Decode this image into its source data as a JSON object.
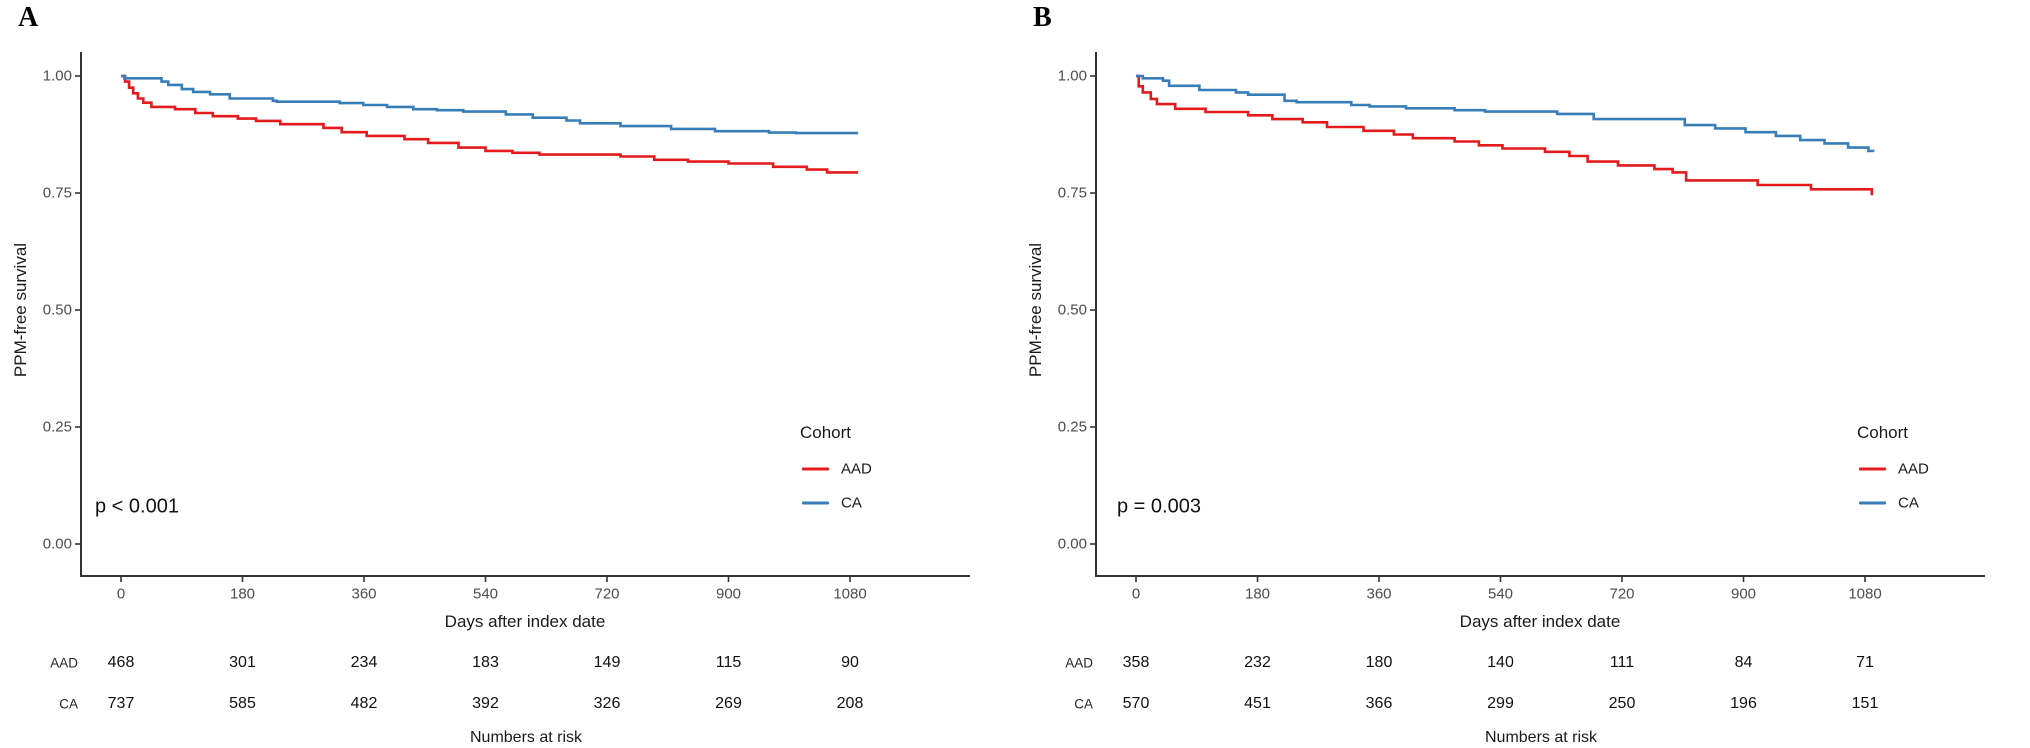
{
  "chart_data": [
    {
      "type": "line",
      "subtype": "kaplan-meier-step",
      "panel_label": "A",
      "xlabel": "Days after index date",
      "ylabel": "PPM-free survival",
      "annotation": "p < 0.001",
      "legend_title": "Cohort",
      "legend_position": "right-center",
      "xlim": [
        0,
        1080
      ],
      "ylim": [
        0.0,
        1.0
      ],
      "x_ticks": [
        0,
        180,
        360,
        540,
        720,
        900,
        1080
      ],
      "y_ticks": [
        "1.00",
        "0.75",
        "0.50",
        "0.25",
        "0.00"
      ],
      "grid": false,
      "series": [
        {
          "name": "AAD",
          "color": "#e41a1c",
          "points": [
            [
              0,
              1.0
            ],
            [
              6,
              0.988
            ],
            [
              12,
              0.975
            ],
            [
              18,
              0.963
            ],
            [
              25,
              0.952
            ],
            [
              33,
              0.943
            ],
            [
              45,
              0.934
            ],
            [
              80,
              0.929
            ],
            [
              110,
              0.921
            ],
            [
              136,
              0.914
            ],
            [
              173,
              0.909
            ],
            [
              200,
              0.904
            ],
            [
              236,
              0.897
            ],
            [
              300,
              0.889
            ],
            [
              327,
              0.88
            ],
            [
              364,
              0.872
            ],
            [
              420,
              0.865
            ],
            [
              455,
              0.857
            ],
            [
              500,
              0.847
            ],
            [
              540,
              0.84
            ],
            [
              580,
              0.836
            ],
            [
              620,
              0.832
            ],
            [
              740,
              0.828
            ],
            [
              790,
              0.821
            ],
            [
              840,
              0.817
            ],
            [
              900,
              0.813
            ],
            [
              966,
              0.806
            ],
            [
              1016,
              0.8
            ],
            [
              1046,
              0.794
            ],
            [
              1092,
              0.794
            ]
          ]
        },
        {
          "name": "CA",
          "color": "#377eb8",
          "points": [
            [
              0,
              1.0
            ],
            [
              5,
              0.995
            ],
            [
              60,
              0.988
            ],
            [
              70,
              0.981
            ],
            [
              90,
              0.972
            ],
            [
              107,
              0.966
            ],
            [
              132,
              0.961
            ],
            [
              161,
              0.952
            ],
            [
              225,
              0.947
            ],
            [
              231,
              0.945
            ],
            [
              324,
              0.942
            ],
            [
              359,
              0.938
            ],
            [
              394,
              0.934
            ],
            [
              433,
              0.929
            ],
            [
              468,
              0.927
            ],
            [
              507,
              0.924
            ],
            [
              570,
              0.918
            ],
            [
              610,
              0.911
            ],
            [
              660,
              0.905
            ],
            [
              680,
              0.899
            ],
            [
              740,
              0.893
            ],
            [
              815,
              0.887
            ],
            [
              880,
              0.882
            ],
            [
              960,
              0.879
            ],
            [
              1000,
              0.878
            ],
            [
              1092,
              0.878
            ]
          ]
        }
      ],
      "risk_table": {
        "caption": "Numbers at risk",
        "time_points": [
          0,
          180,
          360,
          540,
          720,
          900,
          1080
        ],
        "rows": [
          {
            "label": "AAD",
            "values": [
              "468",
              "301",
              "234",
              "183",
              "149",
              "115",
              "90"
            ]
          },
          {
            "label": "CA",
            "values": [
              "737",
              "585",
              "482",
              "392",
              "326",
              "269",
              "208"
            ]
          }
        ]
      }
    },
    {
      "type": "line",
      "subtype": "kaplan-meier-step",
      "panel_label": "B",
      "xlabel": "Days after index date",
      "ylabel": "PPM-free survival",
      "annotation": "p = 0.003",
      "legend_title": "Cohort",
      "legend_position": "right-center",
      "xlim": [
        0,
        1080
      ],
      "ylim": [
        0.0,
        1.0
      ],
      "x_ticks": [
        0,
        180,
        360,
        540,
        720,
        900,
        1080
      ],
      "y_ticks": [
        "1.00",
        "0.75",
        "0.50",
        "0.25",
        "0.00"
      ],
      "grid": false,
      "series": [
        {
          "name": "AAD",
          "color": "#e41a1c",
          "points": [
            [
              0,
              1.0
            ],
            [
              4,
              0.978
            ],
            [
              10,
              0.965
            ],
            [
              22,
              0.951
            ],
            [
              31,
              0.94
            ],
            [
              58,
              0.93
            ],
            [
              103,
              0.923
            ],
            [
              166,
              0.916
            ],
            [
              202,
              0.908
            ],
            [
              247,
              0.901
            ],
            [
              283,
              0.891
            ],
            [
              337,
              0.883
            ],
            [
              382,
              0.875
            ],
            [
              410,
              0.867
            ],
            [
              472,
              0.86
            ],
            [
              508,
              0.852
            ],
            [
              543,
              0.845
            ],
            [
              606,
              0.838
            ],
            [
              642,
              0.829
            ],
            [
              669,
              0.817
            ],
            [
              714,
              0.809
            ],
            [
              768,
              0.801
            ],
            [
              795,
              0.794
            ],
            [
              815,
              0.777
            ],
            [
              921,
              0.767
            ],
            [
              1000,
              0.758
            ],
            [
              1085,
              0.758
            ],
            [
              1090,
              0.748
            ]
          ]
        },
        {
          "name": "CA",
          "color": "#377eb8",
          "points": [
            [
              0,
              1.0
            ],
            [
              10,
              0.995
            ],
            [
              40,
              0.99
            ],
            [
              49,
              0.979
            ],
            [
              94,
              0.97
            ],
            [
              148,
              0.965
            ],
            [
              166,
              0.96
            ],
            [
              220,
              0.947
            ],
            [
              238,
              0.944
            ],
            [
              319,
              0.938
            ],
            [
              346,
              0.935
            ],
            [
              400,
              0.931
            ],
            [
              472,
              0.927
            ],
            [
              517,
              0.924
            ],
            [
              624,
              0.919
            ],
            [
              678,
              0.908
            ],
            [
              813,
              0.895
            ],
            [
              858,
              0.888
            ],
            [
              903,
              0.88
            ],
            [
              948,
              0.872
            ],
            [
              984,
              0.863
            ],
            [
              1020,
              0.856
            ],
            [
              1055,
              0.847
            ],
            [
              1085,
              0.84
            ],
            [
              1092,
              0.838
            ]
          ]
        }
      ],
      "risk_table": {
        "caption": "Numbers at risk",
        "time_points": [
          0,
          180,
          360,
          540,
          720,
          900,
          1080
        ],
        "rows": [
          {
            "label": "AAD",
            "values": [
              "358",
              "232",
              "180",
              "140",
              "111",
              "84",
              "71"
            ]
          },
          {
            "label": "CA",
            "values": [
              "570",
              "451",
              "366",
              "299",
              "250",
              "196",
              "151"
            ]
          }
        ]
      }
    }
  ]
}
